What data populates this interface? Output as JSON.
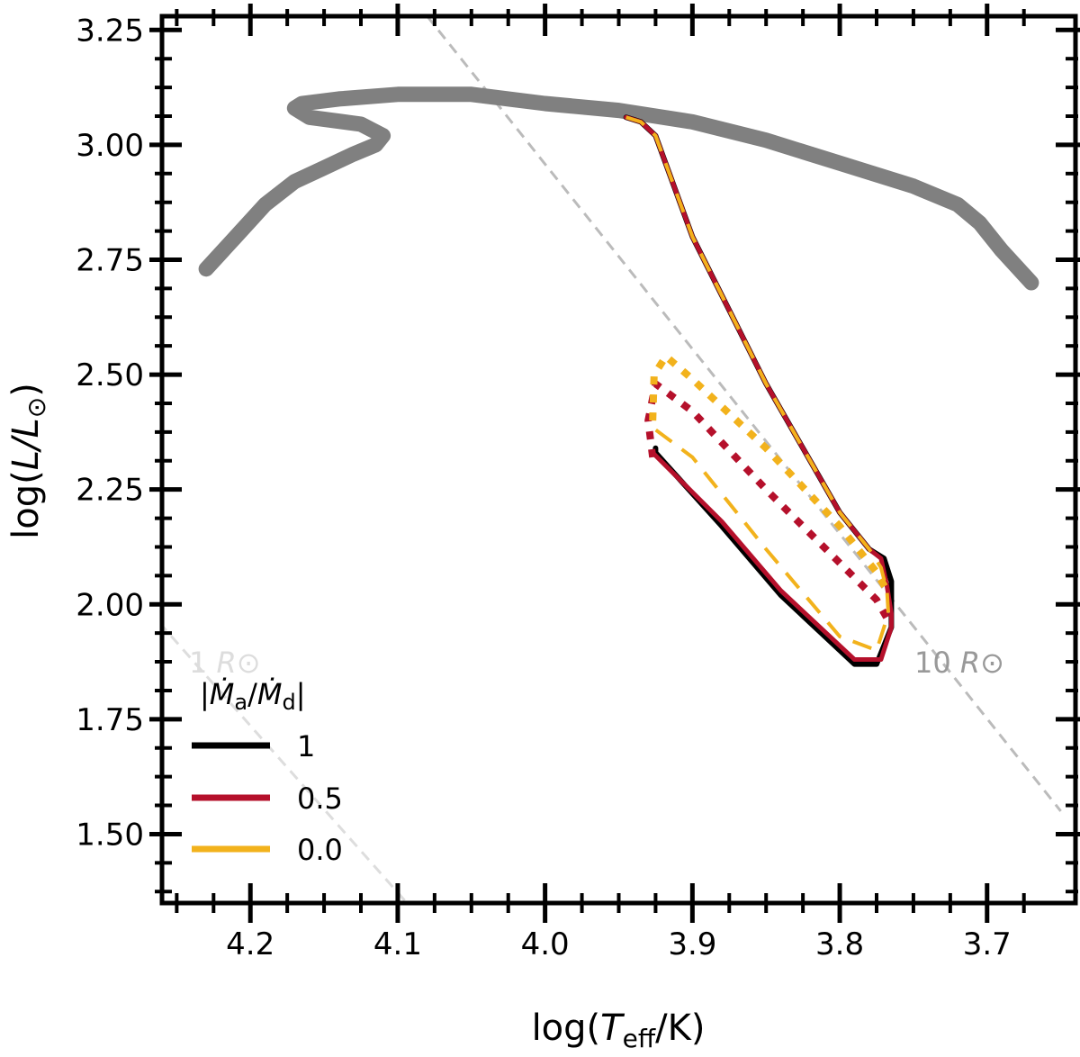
{
  "chart_data": {
    "type": "line",
    "title": "",
    "xlabel": "log(T_eff/K)",
    "ylabel": "log(L/L_⊙)",
    "xlim": [
      4.26,
      3.64
    ],
    "ylim": [
      1.35,
      3.28
    ],
    "x_ticks": [
      4.2,
      4.1,
      4.0,
      3.9,
      3.8,
      3.7
    ],
    "x_tick_labels": [
      "4.2",
      "4.1",
      "4.0",
      "3.9",
      "3.8",
      "3.7"
    ],
    "y_ticks": [
      1.5,
      1.75,
      2.0,
      2.25,
      2.5,
      2.75,
      3.0,
      3.25
    ],
    "y_tick_labels": [
      "1.50",
      "1.75",
      "2.00",
      "2.25",
      "2.50",
      "2.75",
      "3.00",
      "3.25"
    ],
    "label_parts": {
      "x_pre": "log(",
      "x_sym": "T",
      "x_sub": "eff",
      "x_post": "/K)",
      "y_pre": "log(",
      "y_sym": "L/L",
      "y_sub": "⊙",
      "y_post": ")",
      "legend_title": "|Ṁa/Ṁd|",
      "lt_pipe": "|",
      "lt_m": "Ṁ",
      "lt_sub1": "a",
      "lt_slash": "/",
      "lt_sub2": "d"
    },
    "annotations": [
      {
        "text": "1 R⊙",
        "label": "1",
        "unit": "R⊙",
        "color": "#dddddd"
      },
      {
        "text": "10 R⊙",
        "label": "10",
        "unit": "R⊙",
        "color": "#999999"
      }
    ],
    "radius_lines": [
      {
        "name": "1 Rsun",
        "x": [
          4.27,
          4.08
        ],
        "y": [
          1.99,
          1.3
        ],
        "color": "#dddddd"
      },
      {
        "name": "10 Rsun",
        "x": [
          4.08,
          3.65
        ],
        "y": [
          3.28,
          1.55
        ],
        "color": "#bbbbbb"
      }
    ],
    "legend": {
      "title": "|Ṁa/Ṁd|",
      "entries": [
        {
          "label": "1",
          "color": "#000000"
        },
        {
          "label": "0.5",
          "color": "#b5102b"
        },
        {
          "label": "0.0",
          "color": "#f2b21c"
        }
      ]
    },
    "series": [
      {
        "name": "donor track",
        "color": "#808080",
        "x": [
          4.23,
          4.21,
          4.19,
          4.17,
          4.15,
          4.13,
          4.115,
          4.11,
          4.125,
          4.16,
          4.17,
          4.165,
          4.14,
          4.1,
          4.05,
          4.0,
          3.95,
          3.9,
          3.85,
          3.8,
          3.75,
          3.72,
          3.705,
          3.69,
          3.67
        ],
        "y": [
          2.73,
          2.8,
          2.87,
          2.92,
          2.95,
          2.98,
          3.0,
          3.02,
          3.045,
          3.06,
          3.08,
          3.09,
          3.1,
          3.11,
          3.11,
          3.09,
          3.075,
          3.05,
          3.01,
          2.96,
          2.91,
          2.87,
          2.83,
          2.77,
          2.7
        ]
      },
      {
        "name": "1 (solid)",
        "color": "#000000",
        "x": [
          3.945,
          3.935,
          3.925,
          3.9,
          3.85,
          3.8,
          3.78,
          3.77,
          3.765,
          3.765,
          3.765,
          3.775,
          3.79,
          3.84,
          3.88,
          3.925,
          3.925
        ],
        "y": [
          3.06,
          3.05,
          3.02,
          2.8,
          2.48,
          2.2,
          2.12,
          2.1,
          2.05,
          1.99,
          1.95,
          1.87,
          1.87,
          2.02,
          2.17,
          2.33,
          2.34
        ]
      },
      {
        "name": "0.5 (solid)",
        "color": "#b5102b",
        "x": [
          3.945,
          3.935,
          3.925,
          3.9,
          3.85,
          3.8,
          3.78,
          3.772,
          3.768,
          3.765,
          3.765,
          3.772,
          3.79,
          3.84,
          3.88,
          3.927
        ],
        "y": [
          3.06,
          3.05,
          3.02,
          2.8,
          2.48,
          2.2,
          2.12,
          2.1,
          2.04,
          1.98,
          1.95,
          1.88,
          1.88,
          2.03,
          2.18,
          2.33
        ]
      },
      {
        "name": "0.5 (dotted)",
        "color": "#b5102b",
        "x": [
          3.927,
          3.93,
          3.925,
          3.9,
          3.85,
          3.8,
          3.775,
          3.768
        ],
        "y": [
          2.32,
          2.4,
          2.48,
          2.42,
          2.25,
          2.09,
          2.01,
          1.97
        ]
      },
      {
        "name": "0.0 (dashed)",
        "color": "#f2b21c",
        "x": [
          3.945,
          3.935,
          3.925,
          3.9,
          3.85,
          3.8,
          3.78,
          3.772,
          3.768,
          3.767,
          3.775,
          3.8,
          3.85,
          3.9,
          3.925,
          3.927
        ],
        "y": [
          3.06,
          3.05,
          3.02,
          2.8,
          2.48,
          2.2,
          2.12,
          2.08,
          2.03,
          1.98,
          1.9,
          1.93,
          2.12,
          2.32,
          2.38,
          2.4
        ]
      },
      {
        "name": "0.0 (dotted)",
        "color": "#f2b21c",
        "x": [
          3.927,
          3.926,
          3.918,
          3.9,
          3.85,
          3.8,
          3.775,
          3.768
        ],
        "y": [
          2.4,
          2.5,
          2.54,
          2.49,
          2.34,
          2.17,
          2.07,
          2.03
        ]
      }
    ]
  }
}
